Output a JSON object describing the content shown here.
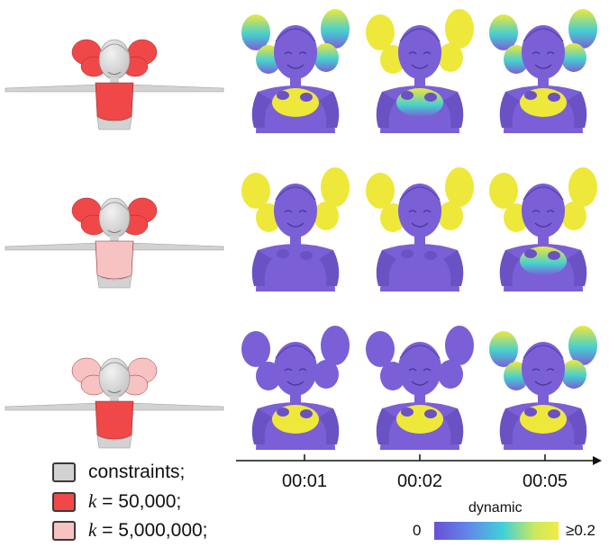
{
  "legend": {
    "items": [
      {
        "id": "constraints",
        "label": "constraints;",
        "color": "#d2d2d2"
      },
      {
        "id": "k50000",
        "var": "k",
        "label": " = 50,000;",
        "color": "#f04848"
      },
      {
        "id": "k5000000",
        "var": "k",
        "label": " = 5,000,000;",
        "color": "#f7c2c2"
      }
    ]
  },
  "timeline": {
    "ticks": [
      "00:01",
      "00:02",
      "00:05"
    ]
  },
  "colorbar": {
    "title": "dynamic",
    "min_label": "0",
    "max_label": "≥0.2",
    "colors": [
      "#6a4fd8",
      "#5e8ee8",
      "#40d0d8",
      "#c8e860",
      "#f2ec40"
    ]
  },
  "colors": {
    "body_purple": "#7a5fd6",
    "dynamic_yellow": "#eee83a",
    "mid_cyan": "#46cfd0",
    "rest_gray": "#d2d2d2",
    "stiff_red": "#f04848",
    "soft_pink": "#f7c2c2"
  },
  "rows": [
    {
      "id": "row-1",
      "rest_tails": "stiff_red",
      "rest_torso": "stiff_red",
      "frames": [
        {
          "tails": "mixed",
          "chest": "yellow"
        },
        {
          "tails": "yellow",
          "chest": "mixed"
        },
        {
          "tails": "mixed",
          "chest": "yellow"
        }
      ]
    },
    {
      "id": "row-2",
      "rest_tails": "stiff_red",
      "rest_torso": "soft_pink",
      "frames": [
        {
          "tails": "yellow",
          "chest": "purple"
        },
        {
          "tails": "yellow",
          "chest": "purple"
        },
        {
          "tails": "yellow",
          "chest": "mixed"
        }
      ]
    },
    {
      "id": "row-3",
      "rest_tails": "soft_pink",
      "rest_torso": "stiff_red",
      "frames": [
        {
          "tails": "purple",
          "chest": "yellow"
        },
        {
          "tails": "purple",
          "chest": "yellow"
        },
        {
          "tails": "mixed",
          "chest": "yellow"
        }
      ]
    }
  ]
}
